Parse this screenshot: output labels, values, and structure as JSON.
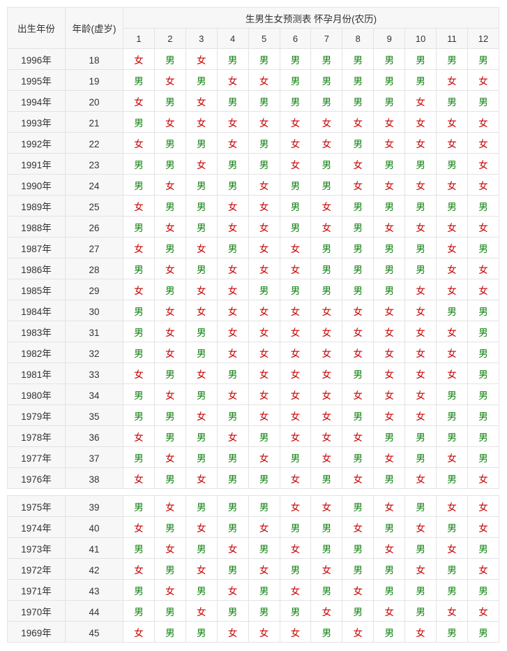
{
  "header": {
    "birth_year": "出生年份",
    "age": "年龄(虚岁)",
    "title": "生男生女预测表 怀孕月份(农历)",
    "months": [
      "1",
      "2",
      "3",
      "4",
      "5",
      "6",
      "7",
      "8",
      "9",
      "10",
      "11",
      "12"
    ]
  },
  "colors": {
    "boy": "#0a7f0a",
    "girl": "#c80000"
  },
  "rows": [
    {
      "year": "1996年",
      "age": "18",
      "cells": [
        "女",
        "男",
        "女",
        "男",
        "男",
        "男",
        "男",
        "男",
        "男",
        "男",
        "男",
        "男"
      ]
    },
    {
      "year": "1995年",
      "age": "19",
      "cells": [
        "男",
        "女",
        "男",
        "女",
        "女",
        "男",
        "男",
        "男",
        "男",
        "男",
        "女",
        "女"
      ]
    },
    {
      "year": "1994年",
      "age": "20",
      "cells": [
        "女",
        "男",
        "女",
        "男",
        "男",
        "男",
        "男",
        "男",
        "男",
        "女",
        "男",
        "男"
      ]
    },
    {
      "year": "1993年",
      "age": "21",
      "cells": [
        "男",
        "女",
        "女",
        "女",
        "女",
        "女",
        "女",
        "女",
        "女",
        "女",
        "女",
        "女"
      ]
    },
    {
      "year": "1992年",
      "age": "22",
      "cells": [
        "女",
        "男",
        "男",
        "女",
        "男",
        "女",
        "女",
        "男",
        "女",
        "女",
        "女",
        "女"
      ]
    },
    {
      "year": "1991年",
      "age": "23",
      "cells": [
        "男",
        "男",
        "女",
        "男",
        "男",
        "女",
        "男",
        "女",
        "男",
        "男",
        "男",
        "女"
      ]
    },
    {
      "year": "1990年",
      "age": "24",
      "cells": [
        "男",
        "女",
        "男",
        "男",
        "女",
        "男",
        "男",
        "女",
        "女",
        "女",
        "女",
        "女"
      ]
    },
    {
      "year": "1989年",
      "age": "25",
      "cells": [
        "女",
        "男",
        "男",
        "女",
        "女",
        "男",
        "女",
        "男",
        "男",
        "男",
        "男",
        "男"
      ]
    },
    {
      "year": "1988年",
      "age": "26",
      "cells": [
        "男",
        "女",
        "男",
        "女",
        "女",
        "男",
        "女",
        "男",
        "女",
        "女",
        "女",
        "女"
      ]
    },
    {
      "year": "1987年",
      "age": "27",
      "cells": [
        "女",
        "男",
        "女",
        "男",
        "女",
        "女",
        "男",
        "男",
        "男",
        "男",
        "女",
        "男"
      ]
    },
    {
      "year": "1986年",
      "age": "28",
      "cells": [
        "男",
        "女",
        "男",
        "女",
        "女",
        "女",
        "男",
        "男",
        "男",
        "男",
        "女",
        "女"
      ]
    },
    {
      "year": "1985年",
      "age": "29",
      "cells": [
        "女",
        "男",
        "女",
        "女",
        "男",
        "男",
        "男",
        "男",
        "男",
        "女",
        "女",
        "女"
      ]
    },
    {
      "year": "1984年",
      "age": "30",
      "cells": [
        "男",
        "女",
        "女",
        "女",
        "女",
        "女",
        "女",
        "女",
        "女",
        "女",
        "男",
        "男"
      ]
    },
    {
      "year": "1983年",
      "age": "31",
      "cells": [
        "男",
        "女",
        "男",
        "女",
        "女",
        "女",
        "女",
        "女",
        "女",
        "女",
        "女",
        "男"
      ]
    },
    {
      "year": "1982年",
      "age": "32",
      "cells": [
        "男",
        "女",
        "男",
        "女",
        "女",
        "女",
        "女",
        "女",
        "女",
        "女",
        "女",
        "男"
      ]
    },
    {
      "year": "1981年",
      "age": "33",
      "cells": [
        "女",
        "男",
        "女",
        "男",
        "女",
        "女",
        "女",
        "男",
        "女",
        "女",
        "女",
        "男"
      ]
    },
    {
      "year": "1980年",
      "age": "34",
      "cells": [
        "男",
        "女",
        "男",
        "女",
        "女",
        "女",
        "女",
        "女",
        "女",
        "女",
        "男",
        "男"
      ]
    },
    {
      "year": "1979年",
      "age": "35",
      "cells": [
        "男",
        "男",
        "女",
        "男",
        "女",
        "女",
        "女",
        "男",
        "女",
        "女",
        "男",
        "男"
      ]
    },
    {
      "year": "1978年",
      "age": "36",
      "cells": [
        "女",
        "男",
        "男",
        "女",
        "男",
        "女",
        "女",
        "女",
        "男",
        "男",
        "男",
        "男"
      ]
    },
    {
      "year": "1977年",
      "age": "37",
      "cells": [
        "男",
        "女",
        "男",
        "男",
        "女",
        "男",
        "女",
        "男",
        "女",
        "男",
        "女",
        "男"
      ]
    },
    {
      "year": "1976年",
      "age": "38",
      "cells": [
        "女",
        "男",
        "女",
        "男",
        "男",
        "女",
        "男",
        "女",
        "男",
        "女",
        "男",
        "女"
      ]
    }
  ],
  "rows2": [
    {
      "year": "1975年",
      "age": "39",
      "cells": [
        "男",
        "女",
        "男",
        "男",
        "男",
        "女",
        "女",
        "男",
        "女",
        "男",
        "女",
        "女"
      ]
    },
    {
      "year": "1974年",
      "age": "40",
      "cells": [
        "女",
        "男",
        "女",
        "男",
        "女",
        "男",
        "男",
        "女",
        "男",
        "女",
        "男",
        "女"
      ]
    },
    {
      "year": "1973年",
      "age": "41",
      "cells": [
        "男",
        "女",
        "男",
        "女",
        "男",
        "女",
        "男",
        "男",
        "女",
        "男",
        "女",
        "男"
      ]
    },
    {
      "year": "1972年",
      "age": "42",
      "cells": [
        "女",
        "男",
        "女",
        "男",
        "女",
        "男",
        "女",
        "男",
        "男",
        "女",
        "男",
        "女"
      ]
    },
    {
      "year": "1971年",
      "age": "43",
      "cells": [
        "男",
        "女",
        "男",
        "女",
        "男",
        "女",
        "男",
        "女",
        "男",
        "男",
        "男",
        "男"
      ]
    },
    {
      "year": "1970年",
      "age": "44",
      "cells": [
        "男",
        "男",
        "女",
        "男",
        "男",
        "男",
        "女",
        "男",
        "女",
        "男",
        "女",
        "女"
      ]
    },
    {
      "year": "1969年",
      "age": "45",
      "cells": [
        "女",
        "男",
        "男",
        "女",
        "女",
        "女",
        "男",
        "女",
        "男",
        "女",
        "男",
        "男"
      ]
    }
  ]
}
